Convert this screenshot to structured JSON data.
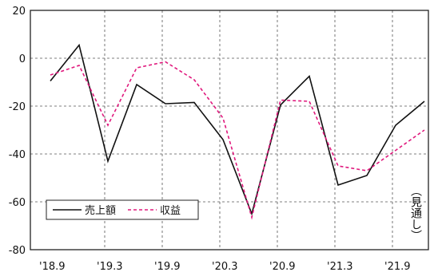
{
  "chart_data": {
    "type": "line",
    "title": "",
    "xlabel": "",
    "ylabel": "",
    "ylim": [
      -80,
      20
    ],
    "y_ticks": [
      "20",
      "0",
      "-20",
      "-40",
      "-60",
      "-80"
    ],
    "x_tick_labels": [
      "'18.9",
      "'19.3",
      "'19.9",
      "'20.3",
      "'20.9",
      "'21.3",
      "'21.9"
    ],
    "x": [
      "'18.9",
      "'18.12",
      "'19.3",
      "'19.6",
      "'19.9",
      "'19.12",
      "'20.3",
      "'20.6",
      "'20.9",
      "'20.12",
      "'21.3",
      "'21.6",
      "'21.9",
      "'21.12"
    ],
    "grid": true,
    "legend_position": "bottom-left",
    "annotation": "（見通し）",
    "series": [
      {
        "name": "売上額",
        "color": "#111111",
        "style": "solid",
        "values": [
          -9.5,
          5.5,
          -43,
          -11,
          -19,
          -18.5,
          -34,
          -65,
          -19.5,
          -7.5,
          -53,
          -49,
          -28,
          -18
        ]
      },
      {
        "name": "収益",
        "color": "#e0197d",
        "style": "dashed",
        "values": [
          -7,
          -3,
          -28,
          -4,
          -1.5,
          -9,
          -25,
          -66.5,
          -17.5,
          -18,
          -45,
          -47,
          -38.5,
          -30
        ]
      }
    ]
  }
}
